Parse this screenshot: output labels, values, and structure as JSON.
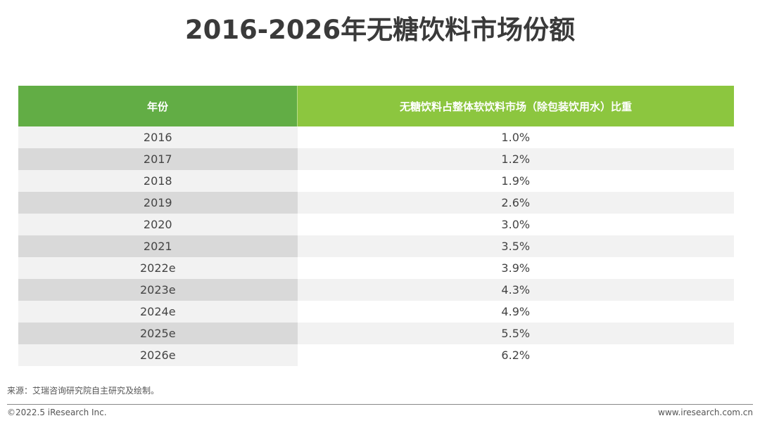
{
  "title": "2016-2026年无糖饮料市场份额",
  "table": {
    "headers": [
      "年份",
      "无糖饮料占整体软饮料市场（除包装饮用水）比重"
    ],
    "rows": [
      [
        "2016",
        "1.0%"
      ],
      [
        "2017",
        "1.2%"
      ],
      [
        "2018",
        "1.9%"
      ],
      [
        "2019",
        "2.6%"
      ],
      [
        "2020",
        "3.0%"
      ],
      [
        "2021",
        "3.5%"
      ],
      [
        "2022e",
        "3.9%"
      ],
      [
        "2023e",
        "4.3%"
      ],
      [
        "2024e",
        "4.9%"
      ],
      [
        "2025e",
        "5.5%"
      ],
      [
        "2026e",
        "6.2%"
      ]
    ]
  },
  "source": "来源：艾瑞咨询研究院自主研究及绘制。",
  "footer": {
    "copyright": "©2022.5 iResearch Inc.",
    "website": "www.iresearch.com.cn"
  },
  "colors": {
    "header_left": "#62ad45",
    "header_right": "#8cc63f"
  }
}
